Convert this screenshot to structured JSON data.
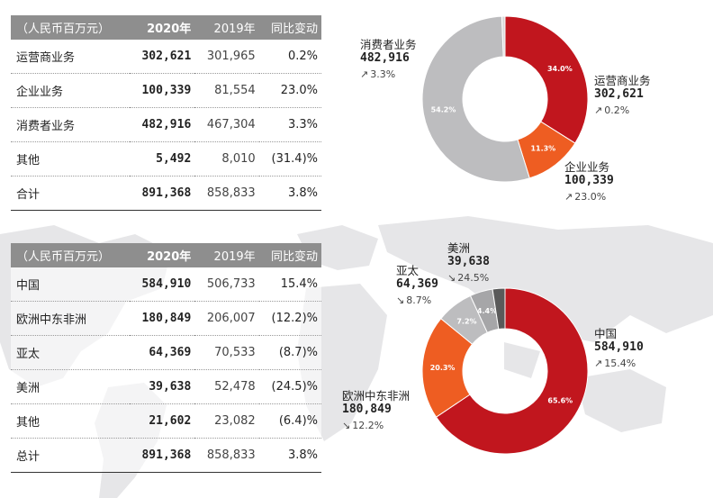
{
  "colors": {
    "red": "#c1161e",
    "orange": "#ee5d22",
    "gray": "#bdbdbf",
    "darkgray": "#6b6b6b",
    "midgray": "#a6a6a8",
    "header": "#8e8e8e"
  },
  "table_business": {
    "header": [
      "（人民币百万元）",
      "2020年",
      "2019年",
      "同比变动"
    ],
    "rows": [
      {
        "name": "运营商业务",
        "v2020": "302,621",
        "v2019": "301,965",
        "change": "0.2%"
      },
      {
        "name": "企业业务",
        "v2020": "100,339",
        "v2019": "81,554",
        "change": "23.0%"
      },
      {
        "name": "消费者业务",
        "v2020": "482,916",
        "v2019": "467,304",
        "change": "3.3%"
      },
      {
        "name": "其他",
        "v2020": "5,492",
        "v2019": "8,010",
        "change": "(31.4)%"
      },
      {
        "name": "合计",
        "v2020": "891,368",
        "v2019": "858,833",
        "change": "3.8%"
      }
    ]
  },
  "table_region": {
    "header": [
      "（人民币百万元）",
      "2020年",
      "2019年",
      "同比变动"
    ],
    "rows": [
      {
        "name": "中国",
        "v2020": "584,910",
        "v2019": "506,733",
        "change": "15.4%"
      },
      {
        "name": "欧洲中东非洲",
        "v2020": "180,849",
        "v2019": "206,007",
        "change": "(12.2)%"
      },
      {
        "name": "亚太",
        "v2020": "64,369",
        "v2019": "70,533",
        "change": "(8.7)%"
      },
      {
        "name": "美洲",
        "v2020": "39,638",
        "v2019": "52,478",
        "change": "(24.5)%"
      },
      {
        "name": "其他",
        "v2020": "21,602",
        "v2019": "23,082",
        "change": "(6.4)%"
      },
      {
        "name": "总计",
        "v2020": "891,368",
        "v2019": "858,833",
        "change": "3.8%"
      }
    ]
  },
  "chart_data": [
    {
      "type": "pie",
      "categories": [
        "运营商业务",
        "企业业务",
        "消费者业务",
        "其他"
      ],
      "values": [
        302621,
        100339,
        482916,
        5492
      ],
      "percent_labels": [
        "34.0%",
        "11.3%",
        "54.2%",
        ""
      ],
      "changes": [
        "0.2%",
        "23.0%",
        "3.3%",
        ""
      ],
      "change_direction": [
        "up",
        "up",
        "up",
        ""
      ],
      "colors": [
        "#c1161e",
        "#ee5d22",
        "#bdbdbf",
        "#d9d9d9"
      ],
      "value_labels": [
        "302,621",
        "100,339",
        "482,916",
        ""
      ]
    },
    {
      "type": "pie",
      "categories": [
        "中国",
        "欧洲中东非洲",
        "亚太",
        "美洲",
        "其他"
      ],
      "values": [
        584910,
        180849,
        64369,
        39638,
        21602
      ],
      "percent_labels": [
        "65.6%",
        "20.3%",
        "7.2%",
        "4.4%",
        ""
      ],
      "changes": [
        "15.4%",
        "12.2%",
        "8.7%",
        "24.5%",
        ""
      ],
      "change_direction": [
        "up",
        "down",
        "down",
        "down",
        ""
      ],
      "colors": [
        "#c1161e",
        "#ee5d22",
        "#bdbdbf",
        "#a6a6a8",
        "#5a5a5a"
      ],
      "value_labels": [
        "584,910",
        "180,849",
        "64,369",
        "39,638",
        ""
      ]
    }
  ]
}
